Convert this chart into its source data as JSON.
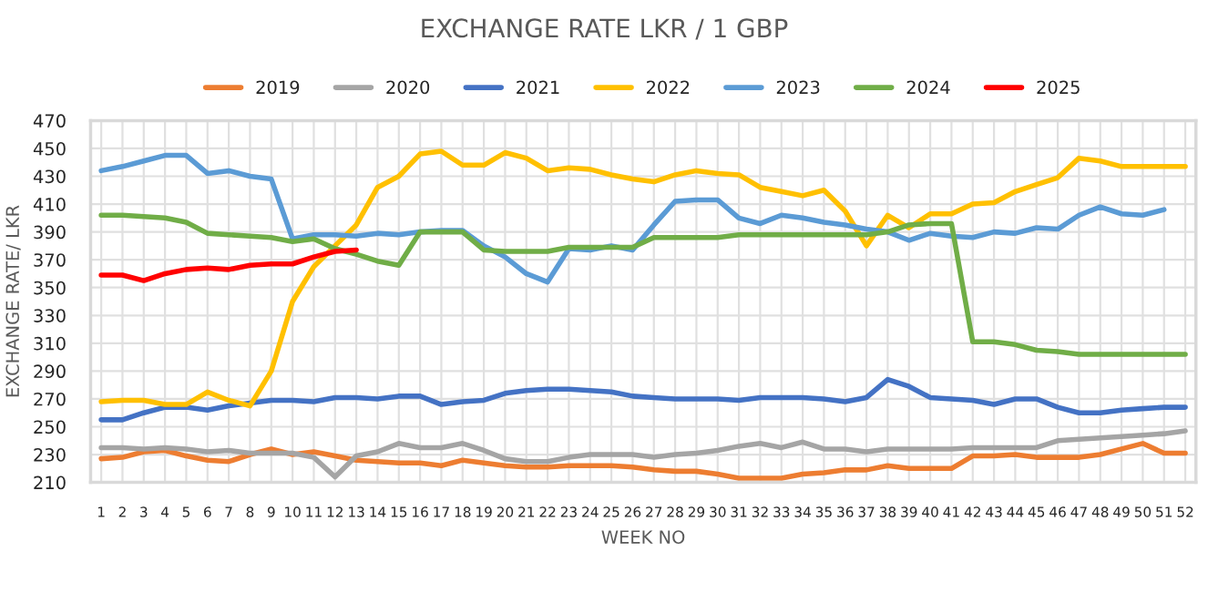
{
  "chart_data": {
    "type": "line",
    "title": "EXCHANGE RATE LKR / 1 GBP",
    "xlabel": "WEEK NO",
    "ylabel": "EXCHANGE RATE/ LKR",
    "categories": [
      "1",
      "2",
      "3",
      "4",
      "5",
      "6",
      "7",
      "8",
      "9",
      "10",
      "11",
      "12",
      "13",
      "14",
      "15",
      "16",
      "17",
      "18",
      "19",
      "20",
      "21",
      "22",
      "23",
      "24",
      "25",
      "26",
      "27",
      "28",
      "29",
      "30",
      "31",
      "32",
      "33",
      "34",
      "35",
      "36",
      "37",
      "38",
      "39",
      "40",
      "41",
      "42",
      "43",
      "44",
      "45",
      "46",
      "47",
      "48",
      "49",
      "50",
      "51",
      "52"
    ],
    "ylim": [
      210,
      470
    ],
    "yticks": [
      210,
      230,
      250,
      270,
      290,
      310,
      330,
      350,
      370,
      390,
      410,
      430,
      450,
      470
    ],
    "grid": true,
    "legend": "top",
    "marker": "none",
    "line_style": "solid",
    "series": [
      {
        "name": "2019",
        "color": "#ed7d31",
        "values": [
          227,
          228,
          232,
          233,
          229,
          226,
          225,
          230,
          234,
          230,
          232,
          229,
          226,
          225,
          224,
          224,
          222,
          226,
          224,
          222,
          221,
          221,
          222,
          222,
          222,
          221,
          219,
          218,
          218,
          216,
          213,
          213,
          213,
          216,
          217,
          219,
          219,
          222,
          220,
          220,
          220,
          229,
          229,
          230,
          228,
          228,
          228,
          230,
          234,
          238,
          231,
          231
        ]
      },
      {
        "name": "2020",
        "color": "#a5a5a5",
        "values": [
          235,
          235,
          234,
          235,
          234,
          232,
          233,
          231,
          231,
          231,
          228,
          214,
          229,
          232,
          238,
          235,
          235,
          238,
          233,
          227,
          225,
          225,
          228,
          230,
          230,
          230,
          228,
          230,
          231,
          233,
          236,
          238,
          235,
          239,
          234,
          234,
          232,
          234,
          234,
          234,
          234,
          235,
          235,
          235,
          235,
          240,
          241,
          242,
          243,
          244,
          245,
          247
        ]
      },
      {
        "name": "2021",
        "color": "#4472c4",
        "values": [
          255,
          255,
          260,
          264,
          264,
          262,
          265,
          267,
          269,
          269,
          268,
          271,
          271,
          270,
          272,
          272,
          266,
          268,
          269,
          274,
          276,
          277,
          277,
          276,
          275,
          272,
          271,
          270,
          270,
          270,
          269,
          271,
          271,
          271,
          270,
          268,
          271,
          284,
          279,
          271,
          270,
          269,
          266,
          270,
          270,
          264,
          260,
          260,
          262,
          263,
          264,
          264
        ]
      },
      {
        "name": "2022",
        "color": "#ffc000",
        "values": [
          268,
          269,
          269,
          266,
          266,
          275,
          269,
          265,
          290,
          340,
          365,
          380,
          395,
          422,
          430,
          446,
          448,
          438,
          438,
          447,
          443,
          434,
          436,
          435,
          431,
          428,
          426,
          431,
          434,
          432,
          431,
          422,
          419,
          416,
          420,
          405,
          380,
          402,
          393,
          403,
          403,
          410,
          411,
          419,
          424,
          429,
          443,
          441,
          437,
          437,
          437,
          437
        ]
      },
      {
        "name": "2023",
        "color": "#5b9bd5",
        "values": [
          434,
          437,
          441,
          445,
          445,
          432,
          434,
          430,
          428,
          385,
          388,
          388,
          387,
          389,
          388,
          390,
          391,
          391,
          380,
          372,
          360,
          354,
          378,
          377,
          380,
          377,
          395,
          412,
          413,
          413,
          400,
          396,
          402,
          400,
          397,
          395,
          392,
          390,
          384,
          389,
          387,
          386,
          390,
          389,
          393,
          392,
          402,
          408,
          403,
          402,
          406,
          null
        ]
      },
      {
        "name": "2024",
        "color": "#70ad47",
        "values": [
          402,
          402,
          401,
          400,
          397,
          389,
          388,
          387,
          386,
          383,
          385,
          378,
          374,
          369,
          366,
          390,
          390,
          390,
          377,
          376,
          376,
          376,
          379,
          379,
          379,
          379,
          386,
          386,
          386,
          386,
          388,
          388,
          388,
          388,
          388,
          388,
          388,
          390,
          395,
          396,
          396,
          311,
          311,
          309,
          305,
          304,
          302,
          302,
          302,
          302,
          302,
          302
        ]
      },
      {
        "name": "2025",
        "color": "#ff0000",
        "values": [
          359,
          359,
          355,
          360,
          363,
          364,
          363,
          366,
          367,
          367,
          372,
          376,
          377,
          null,
          null,
          null,
          null,
          null,
          null,
          null,
          null,
          null,
          null,
          null,
          null,
          null,
          null,
          null,
          null,
          null,
          null,
          null,
          null,
          null,
          null,
          null,
          null,
          null,
          null,
          null,
          null,
          null,
          null,
          null,
          null,
          null,
          null,
          null,
          null,
          null,
          null,
          null
        ]
      }
    ]
  }
}
